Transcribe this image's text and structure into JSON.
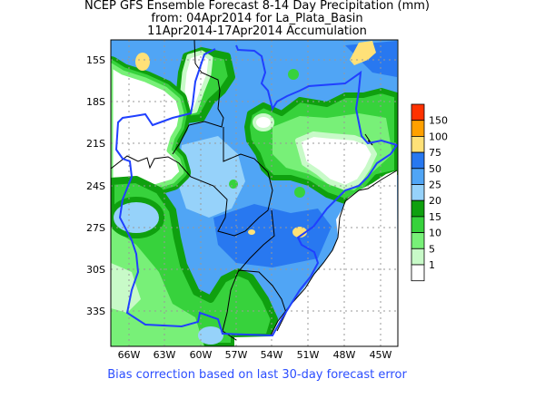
{
  "title": {
    "line1": "NCEP GFS Ensemble Forecast 8-14 Day Precipitation (mm)",
    "line2": "from: 04Apr2014   for La_Plata_Basin",
    "line3": "11Apr2014-17Apr2014 Accumulation"
  },
  "map": {
    "lat_labels": [
      "15S",
      "18S",
      "21S",
      "24S",
      "27S",
      "30S",
      "33S"
    ],
    "lon_labels": [
      "66W",
      "63W",
      "60W",
      "57W",
      "54W",
      "51W",
      "48W",
      "45W"
    ]
  },
  "legend": {
    "labels": [
      "150",
      "100",
      "75",
      "50",
      "25",
      "20",
      "15",
      "10",
      "5",
      "1"
    ],
    "colors": [
      "#ff3200",
      "#ffa000",
      "#ffe178",
      "#2878f0",
      "#50a5f5",
      "#96d2fa",
      "#0fa00f",
      "#37d23c",
      "#78f078",
      "#c8fac8",
      "#ffffff"
    ]
  },
  "footer": "Bias correction based on last 30-day forecast error"
}
